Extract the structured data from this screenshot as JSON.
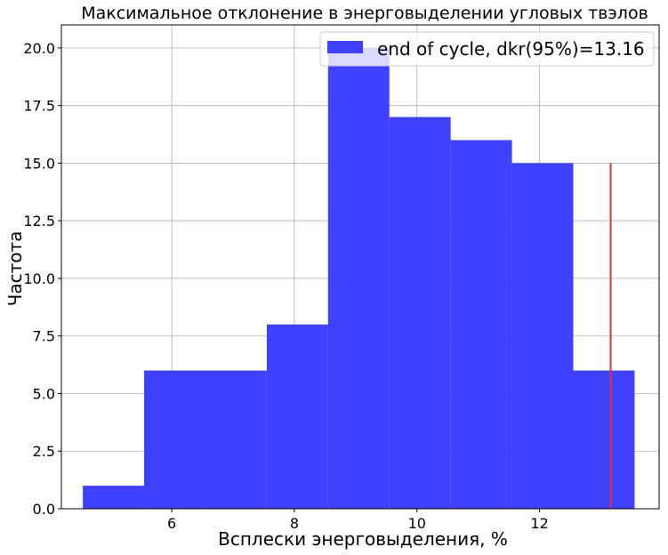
{
  "chart_data": {
    "type": "bar",
    "title": "Максимальное отклонение в энерговыделении угловых твэлов",
    "xlabel": "Всплески энерговыделения, %",
    "ylabel": "Частота",
    "bins": [
      {
        "x0": 4.55,
        "x1": 5.55,
        "value": 1
      },
      {
        "x0": 5.55,
        "x1": 6.55,
        "value": 6
      },
      {
        "x0": 6.55,
        "x1": 7.55,
        "value": 6
      },
      {
        "x0": 7.55,
        "x1": 8.55,
        "value": 8
      },
      {
        "x0": 8.55,
        "x1": 9.55,
        "value": 20
      },
      {
        "x0": 9.55,
        "x1": 10.55,
        "value": 17
      },
      {
        "x0": 10.55,
        "x1": 11.55,
        "value": 16
      },
      {
        "x0": 11.55,
        "x1": 12.55,
        "value": 15
      },
      {
        "x0": 12.55,
        "x1": 13.55,
        "value": 6
      }
    ],
    "bar_color": "#4040ff",
    "vline": {
      "x": 13.16,
      "y0": 0,
      "y1": 15,
      "color": "#e03030"
    },
    "xlim": [
      4.2,
      13.95
    ],
    "ylim": [
      0,
      21
    ],
    "xticks": [
      6,
      8,
      10,
      12
    ],
    "xtick_labels": [
      "6",
      "8",
      "10",
      "12"
    ],
    "yticks": [
      0,
      2.5,
      5,
      7.5,
      10,
      12.5,
      15,
      17.5,
      20
    ],
    "ytick_labels": [
      "0.0",
      "2.5",
      "5.0",
      "7.5",
      "10.0",
      "12.5",
      "15.0",
      "17.5",
      "20.0"
    ],
    "grid": true,
    "legend": {
      "position": "top-right",
      "entries": [
        {
          "label": "end of cycle, dkr(95%)=13.16",
          "color": "#4040ff"
        }
      ]
    }
  }
}
